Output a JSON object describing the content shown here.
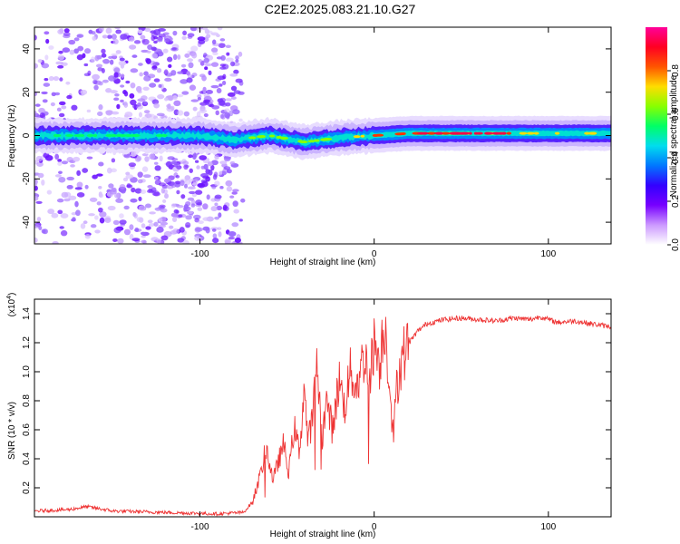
{
  "title": "C2E2.2025.083.21.10.G27",
  "chart_data": [
    {
      "type": "heatmap",
      "xlabel": "Height of straight line (km)",
      "ylabel": "Frequency (Hz)",
      "xlim": [
        -195,
        136
      ],
      "ylim": [
        -50,
        50
      ],
      "xticks": [
        -100,
        0,
        100
      ],
      "yticks": [
        -40,
        -20,
        0,
        20,
        40
      ],
      "colorbar": {
        "label": "Normalized spectral amplitude",
        "range": [
          0,
          1
        ],
        "ticks": [
          0.0,
          0.2,
          0.4,
          0.6,
          0.8
        ],
        "colors": [
          "#ffffff",
          "#cc99ff",
          "#7700ff",
          "#3300ff",
          "#0077ff",
          "#00ddee",
          "#00ff66",
          "#88ff00",
          "#ffdd00",
          "#ff5500",
          "#ff0022",
          "#ff0099"
        ]
      },
      "ridge": [
        {
          "x": -195,
          "y": 0
        },
        {
          "x": -150,
          "y": 0
        },
        {
          "x": -100,
          "y": 0
        },
        {
          "x": -80,
          "y": -2
        },
        {
          "x": -60,
          "y": 0
        },
        {
          "x": -40,
          "y": -3
        },
        {
          "x": -20,
          "y": -1
        },
        {
          "x": 0,
          "y": 0
        },
        {
          "x": 20,
          "y": 1
        },
        {
          "x": 50,
          "y": 1
        },
        {
          "x": 80,
          "y": 1
        },
        {
          "x": 110,
          "y": 1
        },
        {
          "x": 136,
          "y": 1
        }
      ]
    },
    {
      "type": "line",
      "xlabel": "Height of straight line (km)",
      "ylabel": "SNR (10 * v/v)",
      "y_multiplier": "(x10",
      "y_multiplier_exp": "4",
      "xlim": [
        -195,
        136
      ],
      "ylim": [
        0,
        1.5
      ],
      "xticks": [
        -100,
        0,
        100
      ],
      "yticks": [
        0.2,
        0.4,
        0.6,
        0.8,
        1.0,
        1.2,
        1.4
      ],
      "color": "#ee3333",
      "series": [
        {
          "values": [
            [
              -195,
              0.04
            ],
            [
              -175,
              0.05
            ],
            [
              -165,
              0.07
            ],
            [
              -150,
              0.04
            ],
            [
              -120,
              0.03
            ],
            [
              -90,
              0.02
            ],
            [
              -75,
              0.03
            ],
            [
              -70,
              0.1
            ],
            [
              -65,
              0.3
            ],
            [
              -62,
              0.48
            ],
            [
              -58,
              0.25
            ],
            [
              -55,
              0.38
            ],
            [
              -52,
              0.5
            ],
            [
              -49,
              0.3
            ],
            [
              -46,
              0.62
            ],
            [
              -43,
              0.45
            ],
            [
              -40,
              0.9
            ],
            [
              -38,
              0.5
            ],
            [
              -35,
              0.72
            ],
            [
              -33,
              1.1
            ],
            [
              -30,
              0.55
            ],
            [
              -27,
              0.8
            ],
            [
              -24,
              0.6
            ],
            [
              -20,
              0.95
            ],
            [
              -17,
              0.75
            ],
            [
              -14,
              1.0
            ],
            [
              -10,
              0.9
            ],
            [
              -6,
              1.1
            ],
            [
              -2,
              1.0
            ],
            [
              0,
              1.22
            ],
            [
              3,
              1.05
            ],
            [
              6,
              1.35
            ],
            [
              9,
              0.9
            ],
            [
              11,
              0.55
            ],
            [
              13,
              0.9
            ],
            [
              16,
              1.1
            ],
            [
              20,
              1.2
            ],
            [
              25,
              1.28
            ],
            [
              30,
              1.33
            ],
            [
              40,
              1.36
            ],
            [
              50,
              1.37
            ],
            [
              60,
              1.36
            ],
            [
              70,
              1.35
            ],
            [
              80,
              1.37
            ],
            [
              90,
              1.36
            ],
            [
              95,
              1.38
            ],
            [
              100,
              1.36
            ],
            [
              105,
              1.34
            ],
            [
              115,
              1.35
            ],
            [
              125,
              1.33
            ],
            [
              136,
              1.31
            ]
          ]
        }
      ]
    }
  ]
}
